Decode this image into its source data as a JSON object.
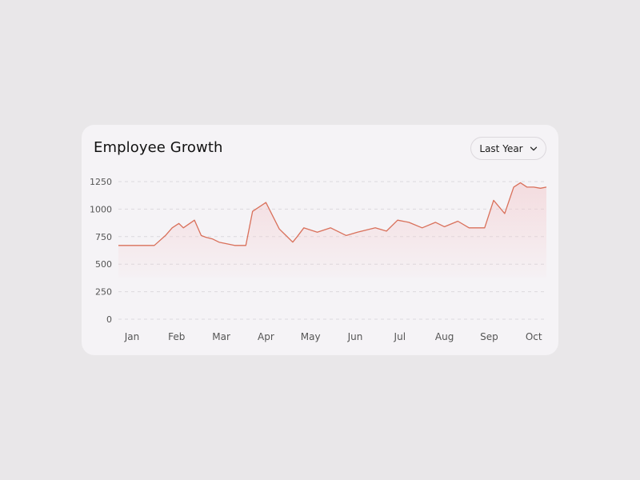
{
  "card": {
    "title": "Employee Growth",
    "range_label": "Last Year",
    "range_icon": "chevron-down-icon"
  },
  "colors": {
    "line": "#d9705a",
    "area_top": "#f4c9cc",
    "grid": "#dcd9de",
    "card_bg": "#f5f3f6",
    "page_bg": "#e9e7e9"
  },
  "chart_data": {
    "type": "area",
    "title": "Employee Growth",
    "xlabel": "",
    "ylabel": "",
    "ylim": [
      0,
      1250
    ],
    "yticks": [
      "0",
      "250",
      "500",
      "750",
      "1000",
      "1250"
    ],
    "xticks": [
      "Jan",
      "Feb",
      "Mar",
      "Apr",
      "May",
      "Jun",
      "Jul",
      "Aug",
      "Sep",
      "Oct"
    ],
    "grid": true,
    "series": [
      {
        "x": [
          0.7,
          1.1,
          1.5,
          1.75,
          1.9,
          2.05,
          2.15,
          2.4,
          2.55,
          2.65,
          2.8,
          2.95,
          3.3,
          3.55,
          3.7,
          4.0,
          4.3,
          4.45,
          4.6,
          4.7,
          4.85,
          5.15,
          5.45,
          5.8,
          6.05,
          6.45,
          6.7,
          6.95,
          7.2,
          7.5,
          7.8,
          8.0,
          8.3,
          8.55,
          8.7,
          8.9,
          9.1,
          9.35,
          9.55,
          9.7,
          9.85,
          10.0,
          10.15,
          10.25
        ],
        "y": [
          670,
          670,
          670,
          760,
          830,
          870,
          830,
          900,
          760,
          745,
          730,
          700,
          670,
          670,
          980,
          1060,
          820,
          760,
          700,
          750,
          830,
          790,
          830,
          760,
          790,
          830,
          800,
          900,
          880,
          830,
          880,
          840,
          890,
          830,
          830,
          830,
          1080,
          960,
          1200,
          1240,
          1200,
          1200,
          1190,
          1200
        ]
      }
    ]
  }
}
